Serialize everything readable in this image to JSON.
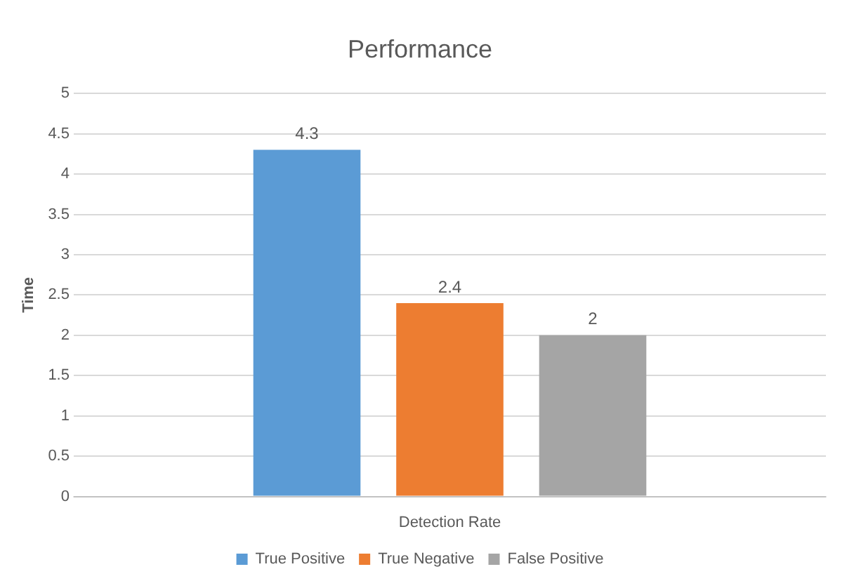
{
  "chart_data": {
    "type": "bar",
    "title": "Performance",
    "xlabel": "Detection Rate",
    "ylabel": "Time",
    "categories": [
      null
    ],
    "series": [
      {
        "name": "True Positive",
        "color": "#5b9bd5",
        "values": [
          4.3
        ]
      },
      {
        "name": "True Negative",
        "color": "#ed7d31",
        "values": [
          2.4
        ]
      },
      {
        "name": "False Positive",
        "color": "#a5a5a5",
        "values": [
          2
        ]
      }
    ],
    "ylim": [
      0,
      5
    ],
    "yticks": [
      0,
      0.5,
      1,
      1.5,
      2,
      2.5,
      3,
      3.5,
      4,
      4.5,
      5
    ],
    "grid": "y",
    "legend": "bottom",
    "data_labels": true
  }
}
